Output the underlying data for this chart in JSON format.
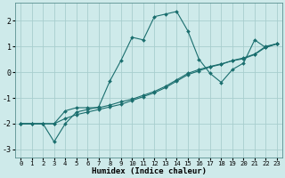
{
  "xlabel": "Humidex (Indice chaleur)",
  "bg_color": "#ceeaea",
  "grid_color": "#a8cece",
  "line_color": "#1a6e6e",
  "xlim": [
    -0.5,
    23.5
  ],
  "ylim": [
    -3.3,
    2.7
  ],
  "yticks": [
    -3,
    -2,
    -1,
    0,
    1,
    2
  ],
  "xticks": [
    0,
    1,
    2,
    3,
    4,
    5,
    6,
    7,
    8,
    9,
    10,
    11,
    12,
    13,
    14,
    15,
    16,
    17,
    18,
    19,
    20,
    21,
    22,
    23
  ],
  "series": [
    {
      "x": [
        0,
        1,
        2,
        3,
        4,
        5,
        6,
        7,
        8,
        9,
        10,
        11,
        12,
        13,
        14,
        15,
        16,
        17,
        18,
        19,
        20,
        21,
        22,
        23
      ],
      "y": [
        -2.0,
        -2.0,
        -2.0,
        -2.7,
        -2.0,
        -1.55,
        -1.45,
        -1.35,
        -0.35,
        0.45,
        1.35,
        1.25,
        2.15,
        2.25,
        2.35,
        1.6,
        0.5,
        -0.05,
        -0.4,
        0.1,
        0.35,
        1.25,
        0.95,
        1.1
      ]
    },
    {
      "x": [
        0,
        1,
        2,
        3,
        4,
        5,
        6,
        7,
        8,
        9,
        10,
        11,
        12,
        13,
        14,
        15,
        16,
        17,
        18,
        19,
        20,
        21,
        22,
        23
      ],
      "y": [
        -2.0,
        -2.0,
        -2.0,
        -2.0,
        -1.8,
        -1.65,
        -1.55,
        -1.45,
        -1.35,
        -1.25,
        -1.1,
        -0.95,
        -0.8,
        -0.6,
        -0.35,
        -0.1,
        0.05,
        0.2,
        0.3,
        0.45,
        0.55,
        0.7,
        1.0,
        1.1
      ]
    },
    {
      "x": [
        0,
        1,
        2,
        3,
        4,
        5,
        6,
        7,
        8,
        9,
        10,
        11,
        12,
        13,
        14,
        15,
        16,
        17,
        18,
        19,
        20,
        21,
        22,
        23
      ],
      "y": [
        -2.0,
        -2.0,
        -2.0,
        -2.0,
        -1.5,
        -1.38,
        -1.38,
        -1.38,
        -1.28,
        -1.15,
        -1.05,
        -0.9,
        -0.75,
        -0.55,
        -0.3,
        -0.05,
        0.1,
        0.22,
        0.32,
        0.44,
        0.52,
        0.68,
        0.97,
        1.1
      ]
    }
  ]
}
